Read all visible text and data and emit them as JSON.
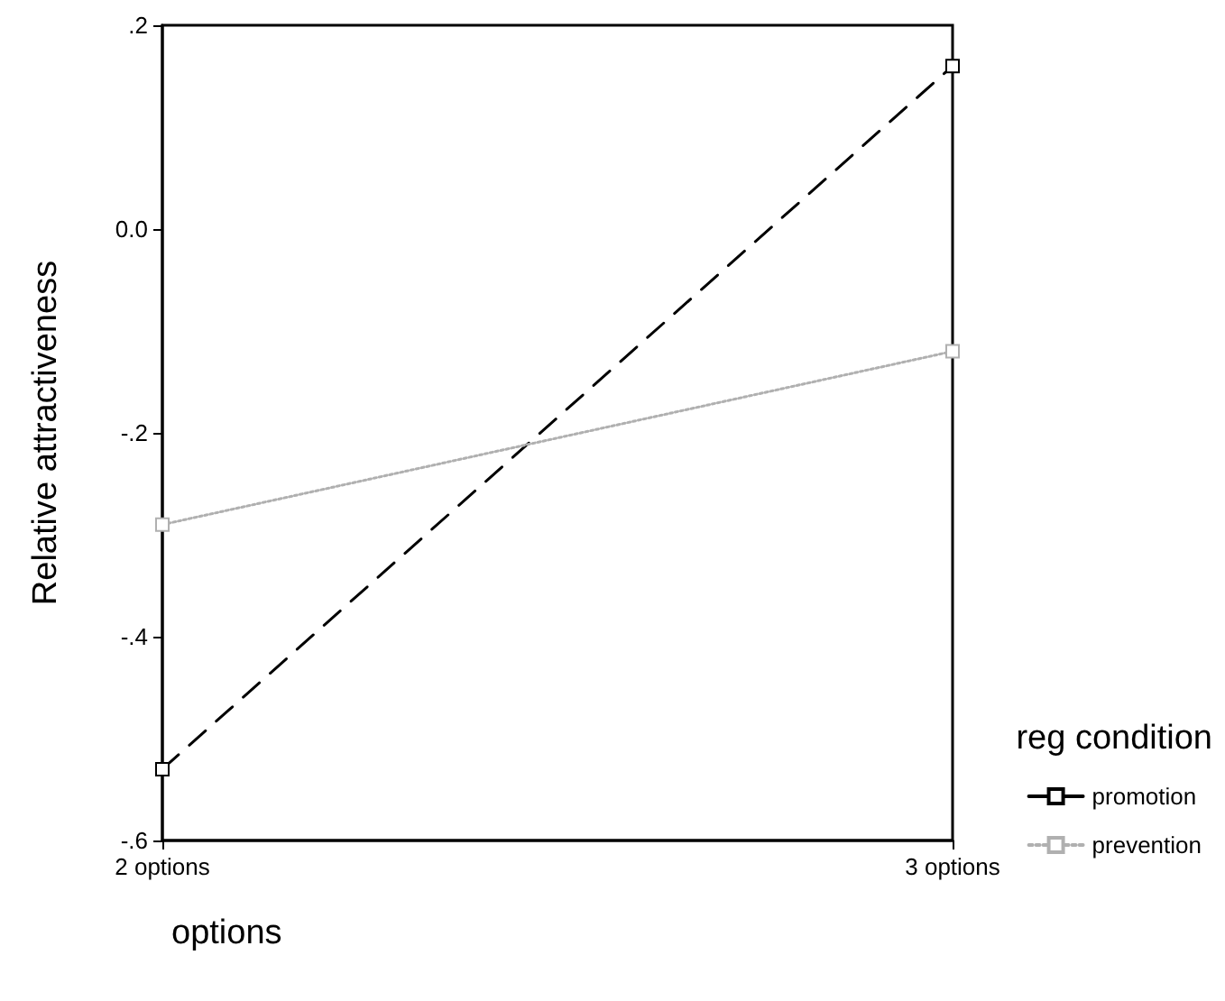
{
  "chart_data": {
    "type": "line",
    "xlabel": "options",
    "ylabel": "Relative attractiveness",
    "legend_title": "reg condition",
    "categories": [
      "2 options",
      "3 options"
    ],
    "series": [
      {
        "name": "promotion",
        "color": "#000000",
        "values": [
          -0.53,
          0.16
        ],
        "line_style": "dashed"
      },
      {
        "name": "prevention",
        "color": "#b0b0b0",
        "values": [
          -0.29,
          -0.12
        ],
        "line_style": "dotted"
      }
    ],
    "ylim": [
      -0.6,
      0.2
    ],
    "yticks": [
      {
        "value": -0.6,
        "label": "-.6"
      },
      {
        "value": -0.4,
        "label": "-.4"
      },
      {
        "value": -0.2,
        "label": "-.2"
      },
      {
        "value": 0,
        "label": "0.0"
      },
      {
        "value": 0.2,
        "label": ".2"
      }
    ],
    "grid": false,
    "legend": "right",
    "marker": "square"
  }
}
